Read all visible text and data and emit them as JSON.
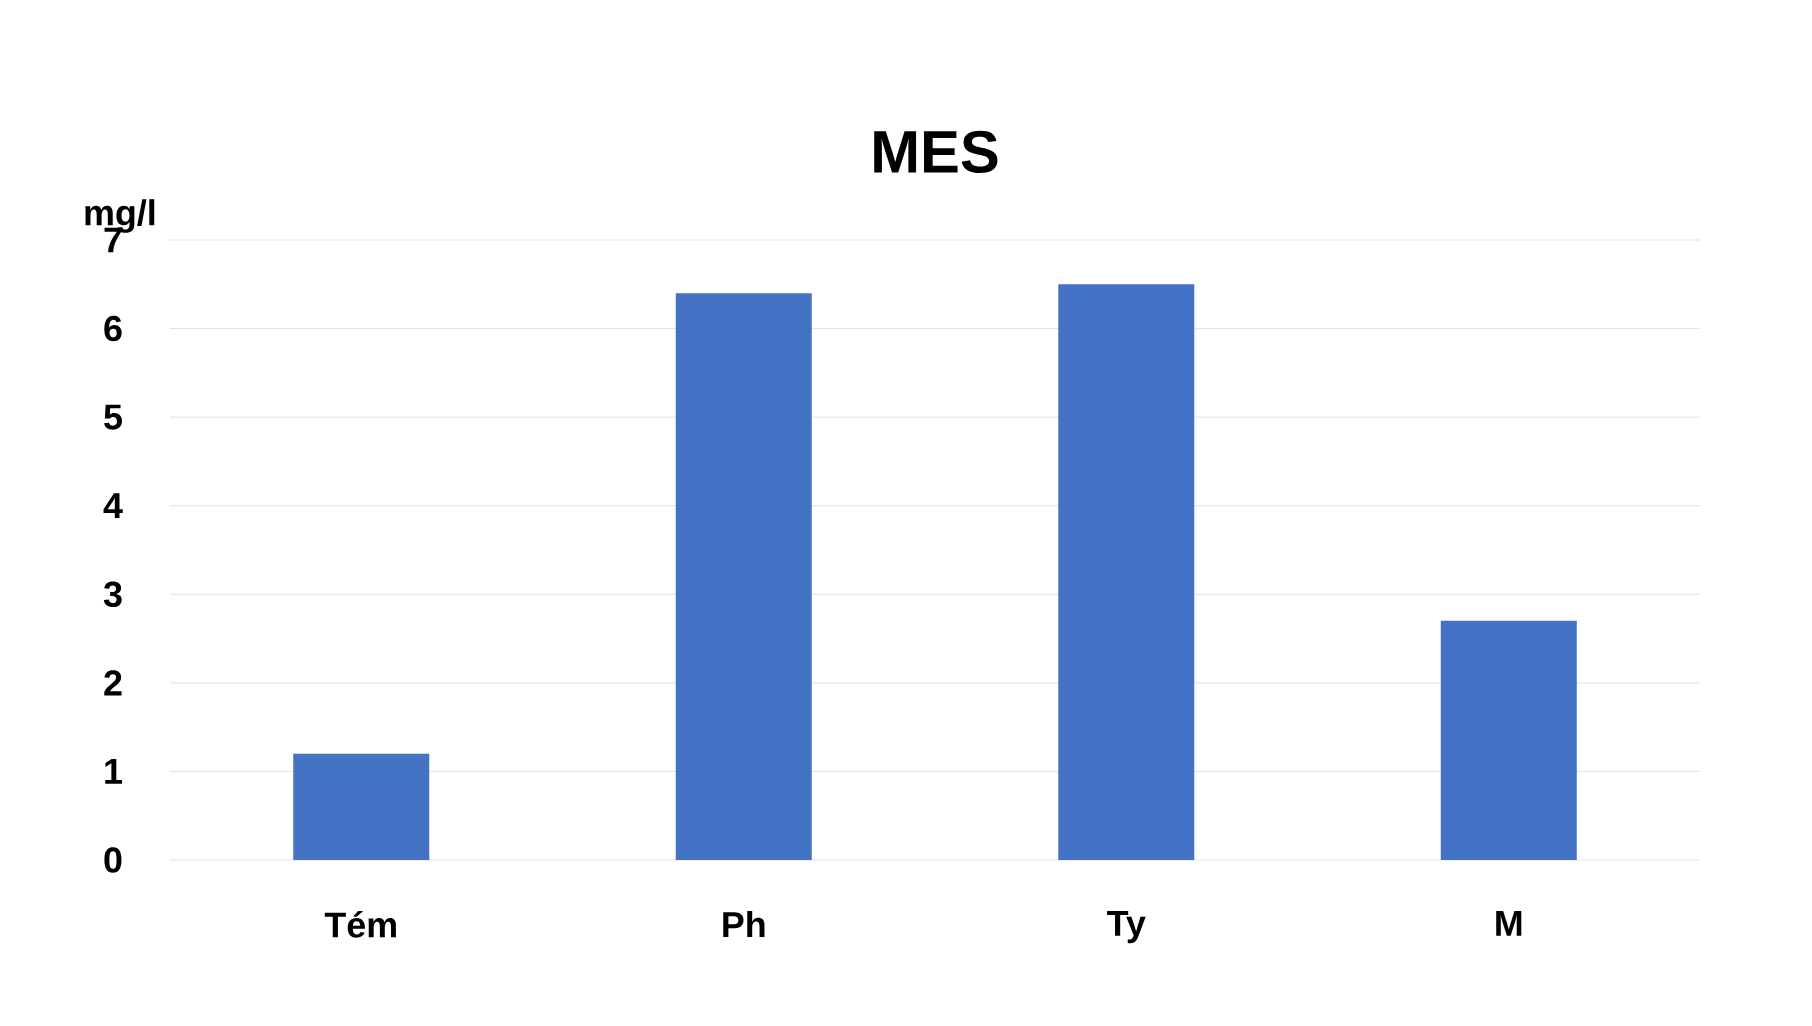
{
  "chart_data": {
    "type": "bar",
    "title": "MES",
    "ylabel": "mg/l",
    "categories": [
      "Tém",
      "Ph",
      "Ty",
      "M"
    ],
    "values": [
      1.2,
      6.4,
      6.5,
      2.7
    ],
    "color": "#4472c4",
    "ylim": [
      0,
      7
    ],
    "yticks": [
      0,
      1,
      2,
      3,
      4,
      5,
      6,
      7
    ],
    "grid": "y"
  }
}
